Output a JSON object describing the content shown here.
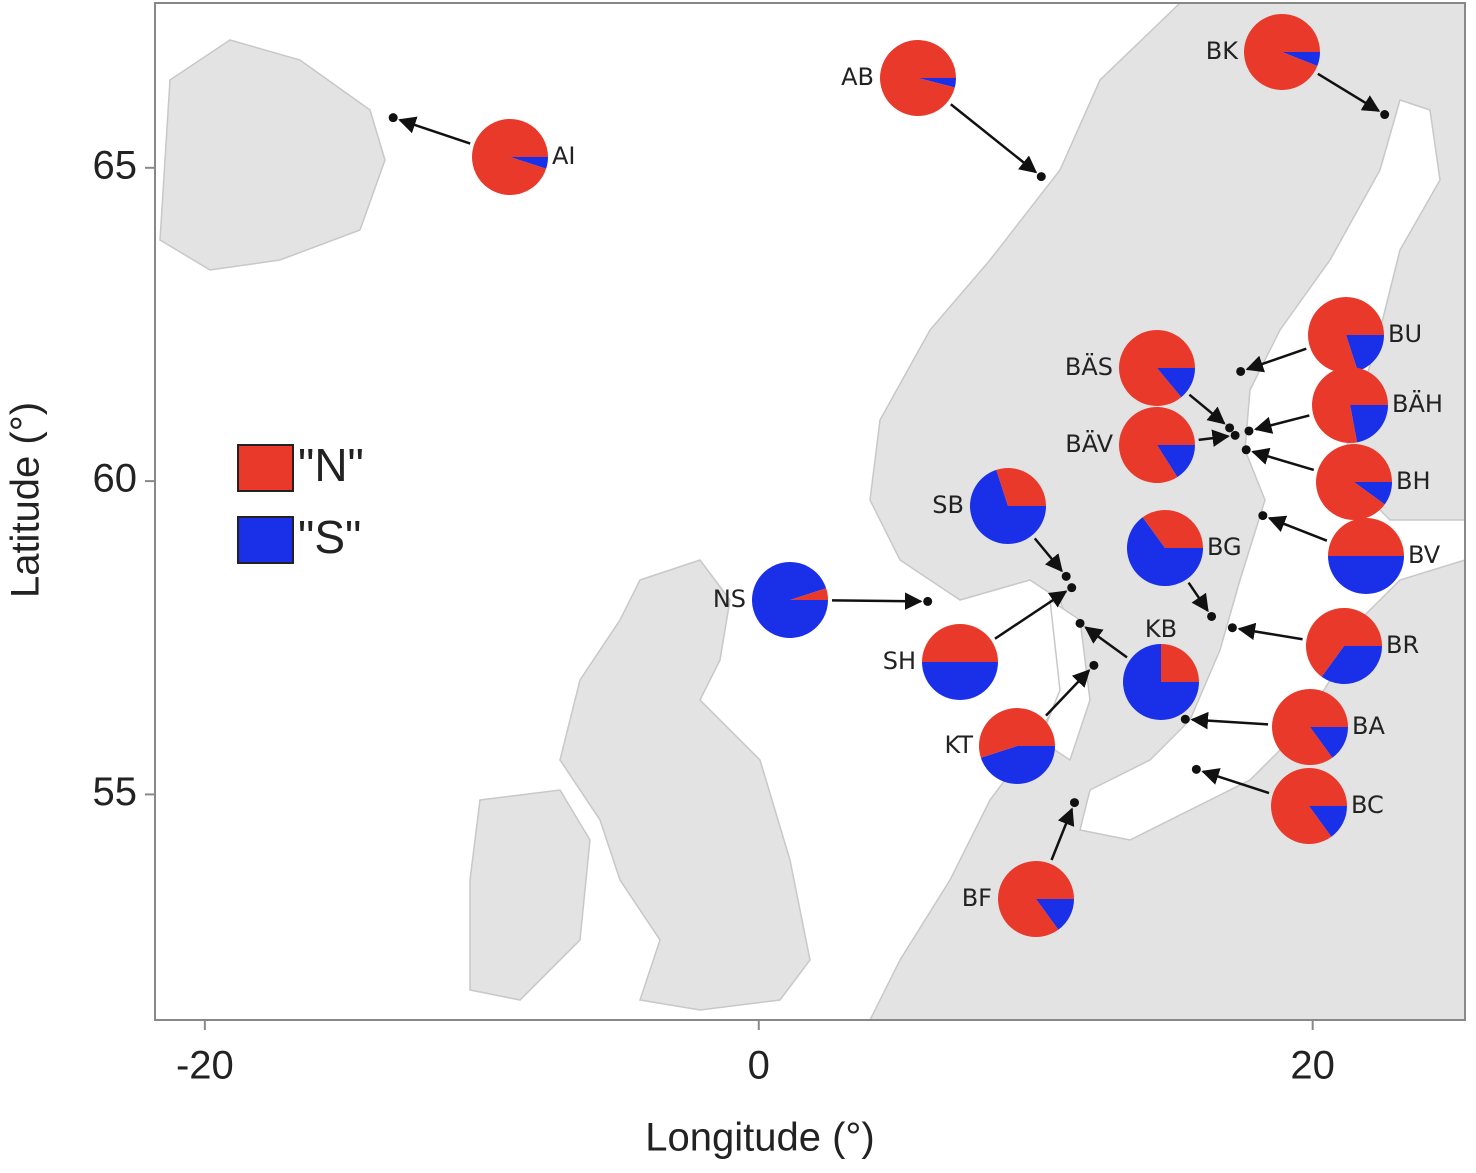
{
  "chart_data": {
    "type": "pie-map",
    "xlabel": "Longitude (°)",
    "ylabel": "Latitude (°)",
    "xlim": [
      -21.8,
      25.5
    ],
    "ylim": [
      51.4,
      67.63
    ],
    "xticks": [
      -20,
      0,
      20
    ],
    "yticks": [
      55,
      60,
      65
    ],
    "series": [
      {
        "name": "\"N\"",
        "color": "#e8392a"
      },
      {
        "name": "\"S\"",
        "color": "#1a2fe8"
      }
    ],
    "sites": [
      {
        "label": "AI",
        "lon": -13.2,
        "lat": 65.8,
        "values": [
          95,
          5
        ]
      },
      {
        "label": "AB",
        "lon": 10.2,
        "lat": 64.86,
        "values": [
          96,
          4
        ]
      },
      {
        "label": "BK",
        "lon": 22.6,
        "lat": 65.85,
        "values": [
          94,
          6
        ]
      },
      {
        "label": "BU",
        "lon": 17.4,
        "lat": 61.75,
        "values": [
          80,
          20
        ]
      },
      {
        "label": "BÄS",
        "lon": 17.0,
        "lat": 60.85,
        "values": [
          86,
          14
        ]
      },
      {
        "label": "BÄH",
        "lon": 17.7,
        "lat": 60.8,
        "values": [
          78,
          22
        ]
      },
      {
        "label": "BÄV",
        "lon": 17.2,
        "lat": 60.73,
        "values": [
          84,
          16
        ]
      },
      {
        "label": "BH",
        "lon": 17.6,
        "lat": 60.5,
        "values": [
          90,
          10
        ]
      },
      {
        "label": "BV",
        "lon": 18.2,
        "lat": 59.45,
        "values": [
          50,
          50
        ]
      },
      {
        "label": "SB",
        "lon": 11.1,
        "lat": 58.48,
        "values": [
          30,
          70
        ]
      },
      {
        "label": "NS",
        "lon": 6.1,
        "lat": 58.08,
        "values": [
          5,
          95
        ]
      },
      {
        "label": "SH",
        "lon": 11.3,
        "lat": 58.3,
        "values": [
          50,
          50
        ]
      },
      {
        "label": "BG",
        "lon": 16.35,
        "lat": 57.84,
        "values": [
          35,
          65
        ]
      },
      {
        "label": "BR",
        "lon": 17.1,
        "lat": 57.66,
        "values": [
          65,
          35
        ]
      },
      {
        "label": "KB",
        "lon": 11.6,
        "lat": 57.73,
        "values": [
          25,
          75
        ]
      },
      {
        "label": "KT",
        "lon": 12.1,
        "lat": 57.06,
        "values": [
          55,
          45
        ]
      },
      {
        "label": "BA",
        "lon": 15.4,
        "lat": 56.2,
        "values": [
          85,
          15
        ]
      },
      {
        "label": "BC",
        "lon": 15.8,
        "lat": 55.4,
        "values": [
          85,
          15
        ]
      },
      {
        "label": "BF",
        "lon": 11.4,
        "lat": 54.87,
        "values": [
          85,
          15
        ]
      }
    ]
  }
}
